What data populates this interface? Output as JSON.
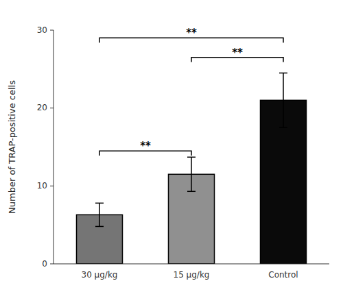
{
  "chart_data": {
    "type": "bar",
    "categories": [
      "30 μg/kg",
      "15 μg/kg",
      "Control"
    ],
    "values": [
      6.3,
      11.5,
      21.0
    ],
    "errors": [
      1.5,
      2.2,
      3.5
    ],
    "colors": [
      "#757575",
      "#909090",
      "#0a0a0a"
    ],
    "ylabel": "Number of TRAP-positive cells",
    "ylim": [
      0,
      30
    ],
    "yticks": [
      0,
      10,
      20,
      30
    ],
    "grid": false,
    "annotations": [
      {
        "text": "**",
        "y": 14.5,
        "x1": "30 μg/kg",
        "x2": "15 μg/kg"
      },
      {
        "text": "**",
        "y": 26.5,
        "x1": "15 μg/kg",
        "x2": "Control"
      },
      {
        "text": "**",
        "y": 29.0,
        "x1": "30 μg/kg",
        "x2": "Control"
      }
    ]
  }
}
